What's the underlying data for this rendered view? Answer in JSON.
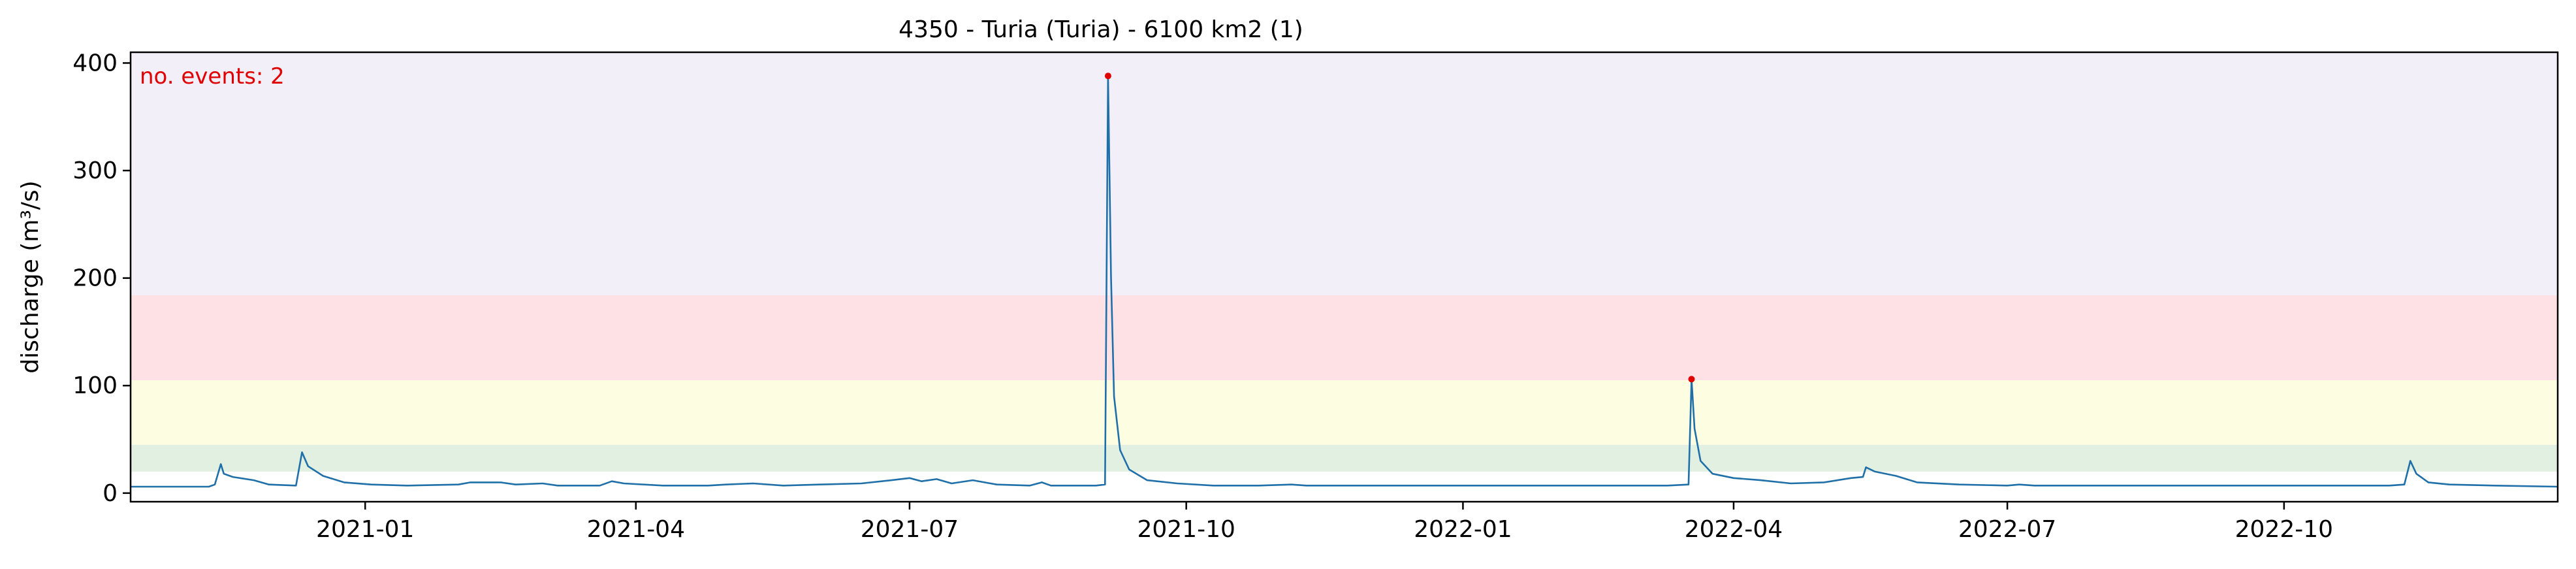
{
  "chart_data": {
    "type": "line",
    "title": "4350 - Turia (Turia) - 6100 km2 (1)",
    "xlabel": "",
    "ylabel": "discharge (m³/s)",
    "xlim": [
      "2020-10-15",
      "2022-12-31"
    ],
    "ylim": [
      -8,
      410
    ],
    "x_ticks": [
      "2021-01",
      "2021-04",
      "2021-07",
      "2021-10",
      "2022-01",
      "2022-04",
      "2022-07",
      "2022-10"
    ],
    "y_ticks": [
      0,
      100,
      200,
      300,
      400
    ],
    "grid": false,
    "threshold_bands": [
      {
        "from": 20,
        "to": 45,
        "color": "#e2f0e2"
      },
      {
        "from": 45,
        "to": 105,
        "color": "#fdfde1"
      },
      {
        "from": 105,
        "to": 184,
        "color": "#fde1e4"
      },
      {
        "from": 184,
        "to": 410,
        "color": "#f2eff9"
      }
    ],
    "series": [
      {
        "color": "#1f6fa8",
        "points": [
          [
            "2020-10-15",
            6
          ],
          [
            "2020-11-10",
            6
          ],
          [
            "2020-11-12",
            8
          ],
          [
            "2020-11-14",
            27
          ],
          [
            "2020-11-15",
            18
          ],
          [
            "2020-11-18",
            15
          ],
          [
            "2020-11-25",
            12
          ],
          [
            "2020-11-30",
            8
          ],
          [
            "2020-12-09",
            7
          ],
          [
            "2020-12-11",
            38
          ],
          [
            "2020-12-13",
            25
          ],
          [
            "2020-12-18",
            16
          ],
          [
            "2020-12-25",
            10
          ],
          [
            "2021-01-03",
            8
          ],
          [
            "2021-01-15",
            7
          ],
          [
            "2021-02-01",
            8
          ],
          [
            "2021-02-05",
            10
          ],
          [
            "2021-02-15",
            10
          ],
          [
            "2021-02-20",
            8
          ],
          [
            "2021-03-01",
            9
          ],
          [
            "2021-03-06",
            7
          ],
          [
            "2021-03-20",
            7
          ],
          [
            "2021-03-24",
            11
          ],
          [
            "2021-03-28",
            9
          ],
          [
            "2021-04-10",
            7
          ],
          [
            "2021-04-25",
            7
          ],
          [
            "2021-05-01",
            8
          ],
          [
            "2021-05-10",
            9
          ],
          [
            "2021-05-20",
            7
          ],
          [
            "2021-06-01",
            8
          ],
          [
            "2021-06-15",
            9
          ],
          [
            "2021-06-25",
            12
          ],
          [
            "2021-07-01",
            14
          ],
          [
            "2021-07-05",
            11
          ],
          [
            "2021-07-10",
            13
          ],
          [
            "2021-07-15",
            9
          ],
          [
            "2021-07-22",
            12
          ],
          [
            "2021-07-30",
            8
          ],
          [
            "2021-08-10",
            7
          ],
          [
            "2021-08-14",
            10
          ],
          [
            "2021-08-17",
            7
          ],
          [
            "2021-08-28",
            7
          ],
          [
            "2021-09-01",
            7
          ],
          [
            "2021-09-04",
            8
          ],
          [
            "2021-09-05",
            388
          ],
          [
            "2021-09-06",
            200
          ],
          [
            "2021-09-07",
            90
          ],
          [
            "2021-09-09",
            40
          ],
          [
            "2021-09-12",
            22
          ],
          [
            "2021-09-18",
            12
          ],
          [
            "2021-09-28",
            9
          ],
          [
            "2021-10-10",
            7
          ],
          [
            "2021-10-25",
            7
          ],
          [
            "2021-11-05",
            8
          ],
          [
            "2021-11-10",
            7
          ],
          [
            "2021-12-01",
            7
          ],
          [
            "2022-01-15",
            7
          ],
          [
            "2022-02-15",
            7
          ],
          [
            "2022-03-10",
            7
          ],
          [
            "2022-03-17",
            8
          ],
          [
            "2022-03-18",
            106
          ],
          [
            "2022-03-19",
            60
          ],
          [
            "2022-03-21",
            30
          ],
          [
            "2022-03-25",
            18
          ],
          [
            "2022-04-01",
            14
          ],
          [
            "2022-04-10",
            12
          ],
          [
            "2022-04-20",
            9
          ],
          [
            "2022-05-01",
            10
          ],
          [
            "2022-05-10",
            14
          ],
          [
            "2022-05-14",
            15
          ],
          [
            "2022-05-15",
            24
          ],
          [
            "2022-05-18",
            20
          ],
          [
            "2022-05-25",
            16
          ],
          [
            "2022-06-01",
            10
          ],
          [
            "2022-06-15",
            8
          ],
          [
            "2022-07-01",
            7
          ],
          [
            "2022-07-05",
            8
          ],
          [
            "2022-07-10",
            7
          ],
          [
            "2022-08-01",
            7
          ],
          [
            "2022-09-01",
            7
          ],
          [
            "2022-10-01",
            7
          ],
          [
            "2022-11-05",
            7
          ],
          [
            "2022-11-10",
            8
          ],
          [
            "2022-11-12",
            30
          ],
          [
            "2022-11-14",
            18
          ],
          [
            "2022-11-18",
            10
          ],
          [
            "2022-11-25",
            8
          ],
          [
            "2022-12-10",
            7
          ],
          [
            "2022-12-31",
            6
          ]
        ]
      }
    ],
    "events": [
      {
        "x": "2021-09-05",
        "y": 388
      },
      {
        "x": "2022-03-18",
        "y": 106
      }
    ],
    "annotation": "no. events: 2"
  }
}
